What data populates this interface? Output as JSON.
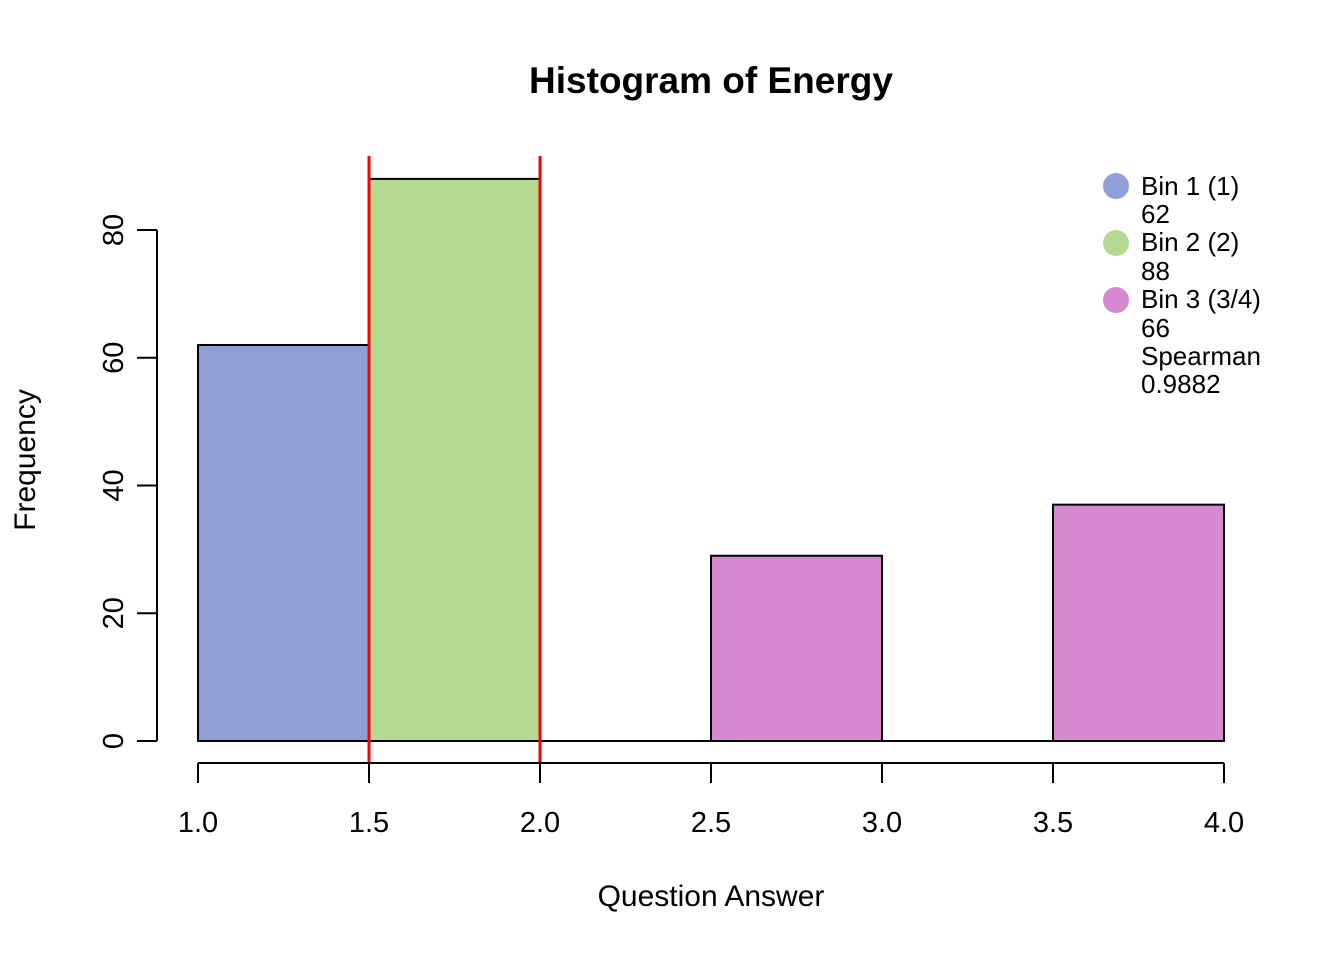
{
  "title": "Histogram of Energy",
  "xlabel": "Question Answer",
  "ylabel": "Frequency",
  "colors": {
    "bin1": "#8F9FD8",
    "bin2": "#B3DA90",
    "bin3": "#D689CE",
    "marker_line": "#FF0000",
    "axis": "#000000",
    "background": "#FFFFFF"
  },
  "chart_data": {
    "type": "bar",
    "title": "Histogram of Energy",
    "xlabel": "Question Answer",
    "ylabel": "Frequency",
    "xlim": [
      1.0,
      4.0
    ],
    "ylim": [
      0,
      80
    ],
    "x_ticks": [
      "1.0",
      "1.5",
      "2.0",
      "2.5",
      "3.0",
      "3.5",
      "4.0"
    ],
    "y_ticks": [
      "0",
      "20",
      "40",
      "60",
      "80"
    ],
    "grid": false,
    "legend_position": "top-right",
    "bars": [
      {
        "bin": "Bin 1 (1)",
        "x0": 1.0,
        "x1": 1.5,
        "value": 62,
        "color": "#8F9FD8"
      },
      {
        "bin": "Bin 2 (2)",
        "x0": 1.5,
        "x1": 2.0,
        "value": 88,
        "color": "#B3DA90"
      },
      {
        "bin": "Bin 3 (3/4)",
        "x0": 2.5,
        "x1": 3.0,
        "value": 29,
        "color": "#D689CE"
      },
      {
        "bin": "Bin 3 (3/4)",
        "x0": 3.5,
        "x1": 4.0,
        "value": 37,
        "color": "#D689CE"
      }
    ],
    "vlines": [
      {
        "x": 1.5,
        "color": "#FF0000"
      },
      {
        "x": 2.0,
        "color": "#FF0000"
      }
    ],
    "annotations": {
      "spearman_label": "Spearman",
      "spearman_value": "0.9882"
    }
  },
  "legend": {
    "entries": [
      {
        "label": "Bin 1 (1)",
        "value": "62",
        "color": "#8F9FD8"
      },
      {
        "label": "Bin 2 (2)",
        "value": "88",
        "color": "#B3DA90"
      },
      {
        "label": "Bin 3 (3/4)",
        "value": "66",
        "color": "#D689CE",
        "extra": [
          "Spearman",
          "0.9882"
        ]
      }
    ]
  }
}
